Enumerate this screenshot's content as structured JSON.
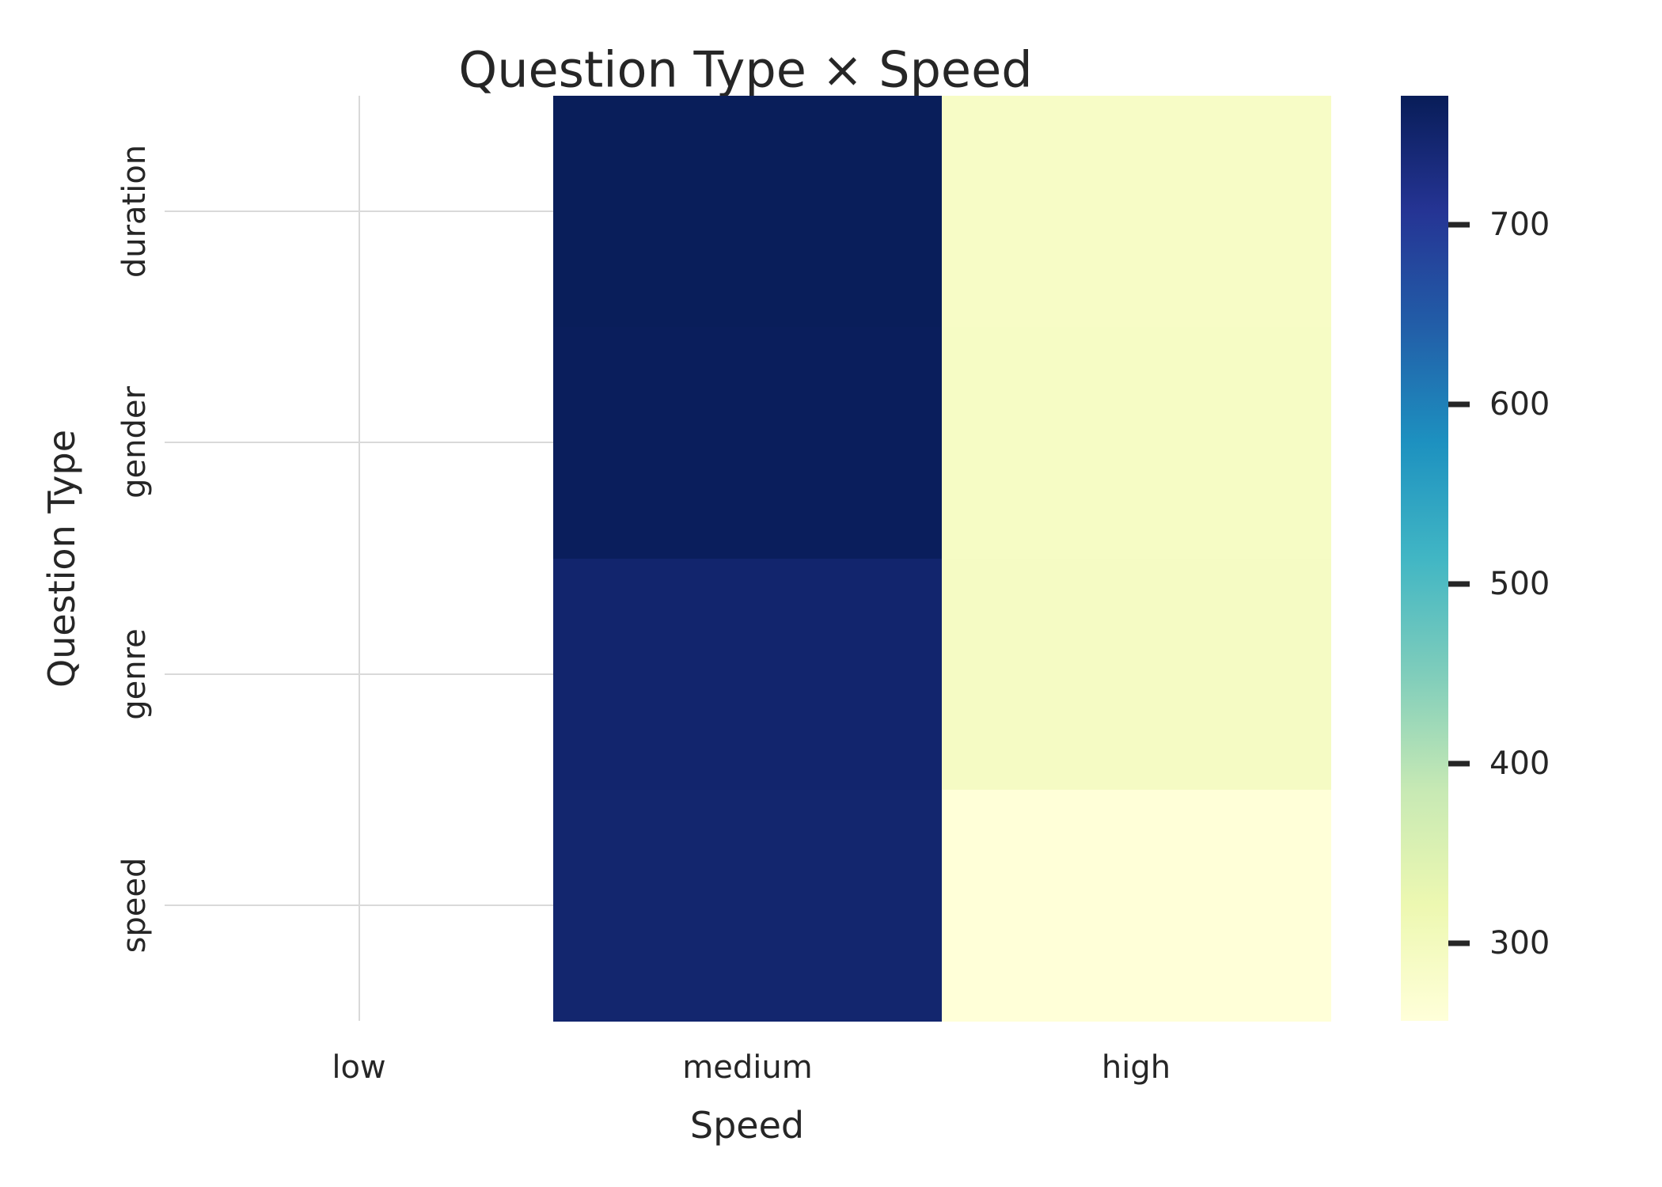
{
  "figure": {
    "background_color": "#ffffff",
    "text_color": "#262626",
    "gridline_color": "#d9d9d9"
  },
  "chart_data": {
    "type": "heatmap",
    "title": "Question Type × Speed",
    "xlabel": "Speed",
    "ylabel": "Question Type",
    "x_categories": [
      "low",
      "medium",
      "high"
    ],
    "y_categories": [
      "duration",
      "gender",
      "genre",
      "speed"
    ],
    "values": [
      [
        null,
        770,
        287
      ],
      [
        null,
        768,
        289
      ],
      [
        null,
        750,
        291
      ],
      [
        null,
        748,
        258
      ]
    ],
    "missing_data_note": "low column has no data (rendered as white background with gridlines showing)",
    "grid": true,
    "legend_position": "none",
    "colorbar": {
      "position": "right",
      "vmin": 257,
      "vmax": 772,
      "ticks": [
        300,
        400,
        500,
        600,
        700
      ],
      "colormap": "YlGnBu",
      "gradient_stops": [
        "#ffffd9",
        "#edf8b1",
        "#c7e9b4",
        "#7fcdbb",
        "#41b6c4",
        "#1d91c0",
        "#225ea8",
        "#253494",
        "#081d58"
      ]
    }
  }
}
